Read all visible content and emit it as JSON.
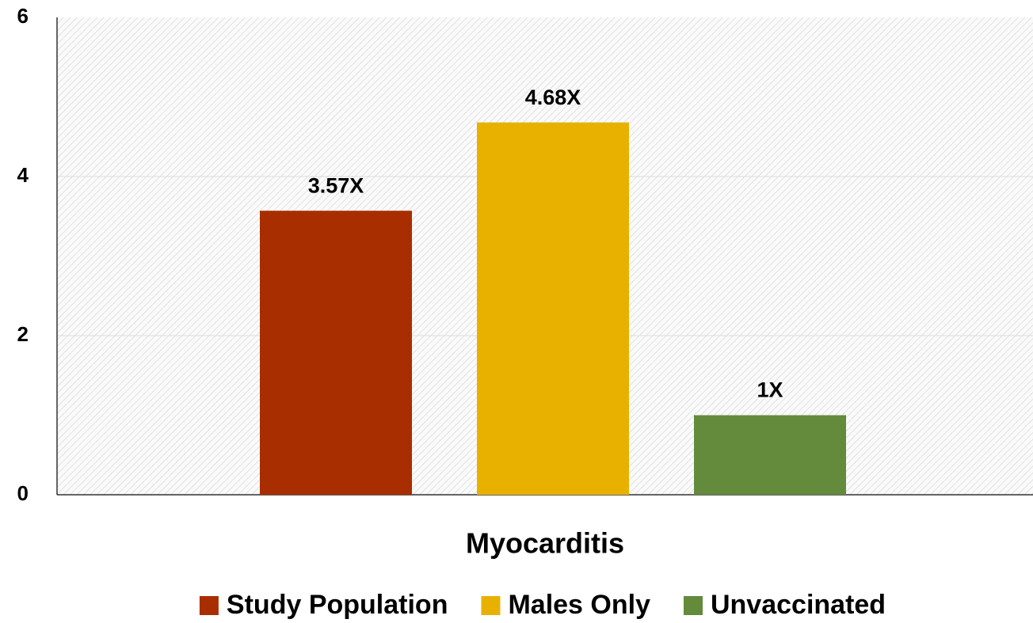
{
  "chart_data": {
    "type": "bar",
    "categories": [
      "Myocarditis"
    ],
    "series": [
      {
        "name": "Study Population",
        "color": "#a82e00",
        "values": [
          3.57
        ],
        "value_labels": [
          "3.57X"
        ]
      },
      {
        "name": "Males Only",
        "color": "#e8b100",
        "values": [
          4.68
        ],
        "value_labels": [
          "4.68X"
        ]
      },
      {
        "name": "Unvaccinated",
        "color": "#648a3c",
        "values": [
          1
        ],
        "value_labels": [
          "1X"
        ]
      }
    ],
    "ylim": [
      0,
      6
    ],
    "yticks": [
      0,
      2,
      4,
      6
    ],
    "grid": true,
    "legend": "bottom"
  }
}
